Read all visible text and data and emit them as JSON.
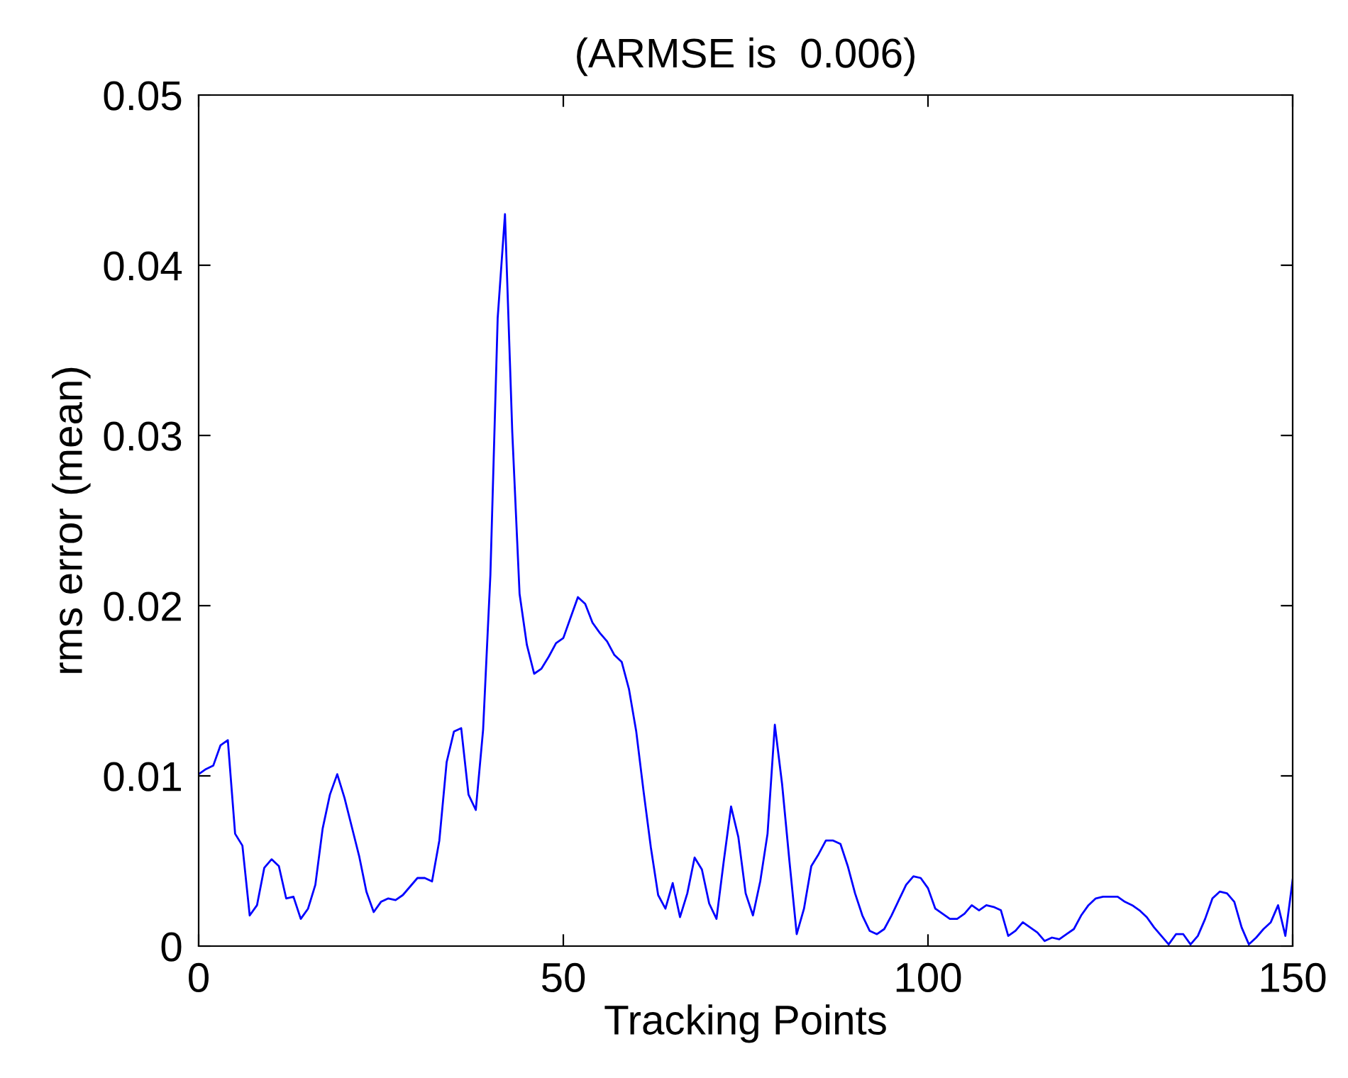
{
  "chart_data": {
    "type": "line",
    "title": "(ARMSE is  0.006)",
    "xlabel": "Tracking Points",
    "ylabel": "rms error (mean)",
    "x": [
      0,
      1,
      2,
      3,
      4,
      5,
      6,
      7,
      8,
      9,
      10,
      11,
      12,
      13,
      14,
      15,
      16,
      17,
      18,
      19,
      20,
      21,
      22,
      23,
      24,
      25,
      26,
      27,
      28,
      29,
      30,
      31,
      32,
      33,
      34,
      35,
      36,
      37,
      38,
      39,
      40,
      41,
      42,
      43,
      44,
      45,
      46,
      47,
      48,
      49,
      50,
      51,
      52,
      53,
      54,
      55,
      56,
      57,
      58,
      59,
      60,
      61,
      62,
      63,
      64,
      65,
      66,
      67,
      68,
      69,
      70,
      71,
      72,
      73,
      74,
      75,
      76,
      77,
      78,
      79,
      80,
      81,
      82,
      83,
      84,
      85,
      86,
      87,
      88,
      89,
      90,
      91,
      92,
      93,
      94,
      95,
      96,
      97,
      98,
      99,
      100,
      101,
      102,
      103,
      104,
      105,
      106,
      107,
      108,
      109,
      110,
      111,
      112,
      113,
      114,
      115,
      116,
      117,
      118,
      119,
      120,
      121,
      122,
      123,
      124,
      125,
      126,
      127,
      128,
      129,
      130,
      131,
      132,
      133,
      134,
      135,
      136,
      137,
      138,
      139,
      140,
      141,
      142,
      143,
      144,
      145,
      146,
      147,
      148,
      149,
      150
    ],
    "series": [
      {
        "color": "#0000ff",
        "values": [
          0.0101,
          0.0104,
          0.0106,
          0.0118,
          0.0121,
          0.0066,
          0.0059,
          0.0018,
          0.0024,
          0.0046,
          0.0051,
          0.0047,
          0.0028,
          0.0029,
          0.0016,
          0.0022,
          0.0036,
          0.0069,
          0.0089,
          0.0101,
          0.0087,
          0.007,
          0.0053,
          0.0032,
          0.002,
          0.0026,
          0.0028,
          0.0027,
          0.003,
          0.0035,
          0.004,
          0.004,
          0.0038,
          0.0062,
          0.0108,
          0.0126,
          0.0128,
          0.0089,
          0.008,
          0.0127,
          0.0218,
          0.0369,
          0.043,
          0.0302,
          0.0207,
          0.0177,
          0.016,
          0.0163,
          0.017,
          0.0178,
          0.0181,
          0.0193,
          0.0205,
          0.0201,
          0.019,
          0.0184,
          0.0179,
          0.0171,
          0.0167,
          0.0151,
          0.0126,
          0.0091,
          0.0058,
          0.003,
          0.0022,
          0.0037,
          0.0017,
          0.0031,
          0.0052,
          0.0045,
          0.0025,
          0.0016,
          0.005,
          0.0082,
          0.0064,
          0.0031,
          0.0018,
          0.0038,
          0.0066,
          0.013,
          0.0095,
          0.005,
          0.0007,
          0.0022,
          0.0047,
          0.0054,
          0.0062,
          0.0062,
          0.006,
          0.0047,
          0.0031,
          0.0018,
          0.0009,
          0.0007,
          0.001,
          0.0018,
          0.0027,
          0.0036,
          0.0041,
          0.004,
          0.0034,
          0.0022,
          0.0019,
          0.0016,
          0.0016,
          0.0019,
          0.0024,
          0.0021,
          0.0024,
          0.0023,
          0.0021,
          0.0006,
          0.0009,
          0.0014,
          0.0011,
          0.0008,
          0.0003,
          0.0005,
          0.0004,
          0.0007,
          0.001,
          0.0018,
          0.0024,
          0.0028,
          0.0029,
          0.0029,
          0.0029,
          0.0026,
          0.0024,
          0.0021,
          0.0017,
          0.0011,
          0.0006,
          0.0001,
          0.0007,
          0.0007,
          0.0001,
          0.0006,
          0.0016,
          0.0028,
          0.0032,
          0.0031,
          0.0026,
          0.0011,
          0.0001,
          0.0005,
          0.001,
          0.0014,
          0.0024,
          0.0006,
          0.0039
        ]
      }
    ],
    "xlim": [
      0,
      150
    ],
    "xticks": [
      0,
      50,
      100,
      150
    ],
    "ylim": [
      0,
      0.05
    ],
    "yticks": [
      0,
      0.01,
      0.02,
      0.03,
      0.04,
      0.05
    ]
  }
}
